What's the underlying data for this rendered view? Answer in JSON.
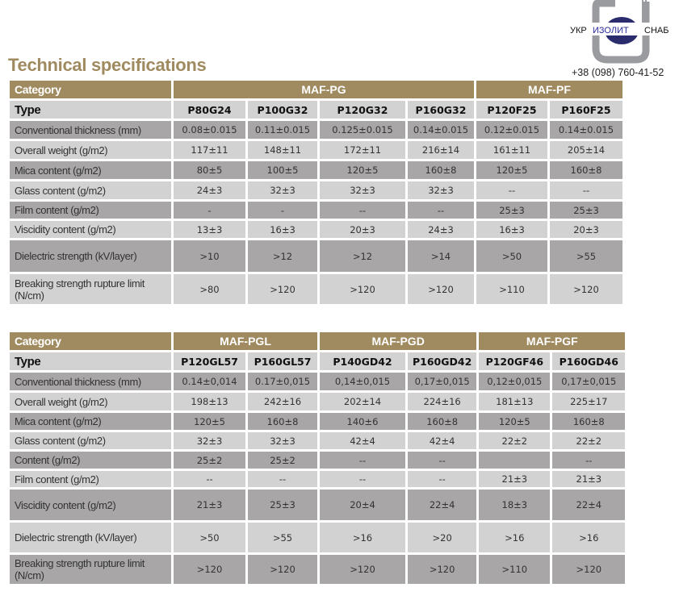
{
  "header": {
    "title": "Technical specifications",
    "phone": "+38 (098) 760-41-52",
    "logo_text": "УКР ИЗОЛИТ СНАБ",
    "accent": "#a08a60"
  },
  "tables": [
    {
      "category_label": "Category",
      "groups": [
        {
          "name": "MAF-PG",
          "span": 4
        },
        {
          "name": "MAF-PF",
          "span": 2
        }
      ],
      "type_label": "Type",
      "types": [
        "P80G24",
        "P100G32",
        "P120G32",
        "P160G32",
        "P120F25",
        "P160F25"
      ],
      "rows": [
        {
          "label": "Conventional thickness (mm)",
          "values": [
            "0.08±0.015",
            "0.11±0.015",
            "0.125±0.015",
            "0.14±0.015",
            "0.12±0.015",
            "0.14±0.015"
          ]
        },
        {
          "label": "Overall weight (g/m2)",
          "values": [
            "117±11",
            "148±11",
            "172±11",
            "216±14",
            "161±11",
            "205±14"
          ]
        },
        {
          "label": "Mica content (g/m2)",
          "values": [
            "80±5",
            "100±5",
            "120±5",
            "160±8",
            "120±5",
            "160±8"
          ]
        },
        {
          "label": "Glass content (g/m2)",
          "values": [
            "24±3",
            "32±3",
            "32±3",
            "32±3",
            "--",
            "--"
          ]
        },
        {
          "label": "Film content (g/m2)",
          "values": [
            "-",
            "-",
            "--",
            "--",
            "25±3",
            "25±3"
          ]
        },
        {
          "label": "Viscidity content (g/m2)",
          "values": [
            "13±3",
            "16±3",
            "20±3",
            "24±3",
            "16±3",
            "20±3"
          ]
        },
        {
          "label": "Dielectric strength (kV/layer)",
          "values": [
            ">10",
            ">12",
            ">12",
            ">14",
            ">50",
            ">55"
          ]
        },
        {
          "label": "Breaking strength rupture limit (N/cm)",
          "values": [
            ">80",
            ">120",
            ">120",
            ">120",
            ">110",
            ">120"
          ]
        }
      ]
    },
    {
      "category_label": "Category",
      "groups": [
        {
          "name": "MAF-PGL",
          "span": 2
        },
        {
          "name": "MAF-PGD",
          "span": 2
        },
        {
          "name": "MAF-PGF",
          "span": 2
        }
      ],
      "type_label": "Type",
      "types": [
        "P120GL57",
        "P160GL57",
        "P140GD42",
        "P160GD42",
        "P120GF46",
        "P160GD46"
      ],
      "rows": [
        {
          "label": "Conventional thickness (mm)",
          "values": [
            "0.14±0,014",
            "0.17±0,015",
            "0,14±0,015",
            "0,17±0,015",
            "0,12±0,015",
            "0,17±0,015"
          ]
        },
        {
          "label": "Overall weight (g/m2)",
          "values": [
            "198±13",
            "242±16",
            "202±14",
            "224±16",
            "181±13",
            "225±17"
          ]
        },
        {
          "label": "Mica content (g/m2)",
          "values": [
            "120±5",
            "160±8",
            "140±6",
            "160±8",
            "120±5",
            "160±8"
          ]
        },
        {
          "label": "Glass content (g/m2)",
          "values": [
            "32±3",
            "32±3",
            "42±4",
            "42±4",
            "22±2",
            "22±2"
          ]
        },
        {
          "label": "Content (g/m2)",
          "values": [
            "25±2",
            "25±2",
            "--",
            "--",
            "",
            "--"
          ]
        },
        {
          "label": "Film content (g/m2)",
          "values": [
            "--",
            "--",
            "--",
            "--",
            "21±3",
            "21±3"
          ]
        },
        {
          "label": "Viscidity content (g/m2)",
          "values": [
            "21±3",
            "25±3",
            "20±4",
            "22±4",
            "18±3",
            "22±4"
          ]
        },
        {
          "label": "Dielectric strength (kV/layer)",
          "values": [
            ">50",
            ">55",
            ">16",
            ">20",
            ">16",
            ">16"
          ]
        },
        {
          "label": "Breaking strength rupture limit (N/cm)",
          "values": [
            ">120",
            ">120",
            ">120",
            ">120",
            ">110",
            ">120"
          ]
        }
      ]
    }
  ]
}
